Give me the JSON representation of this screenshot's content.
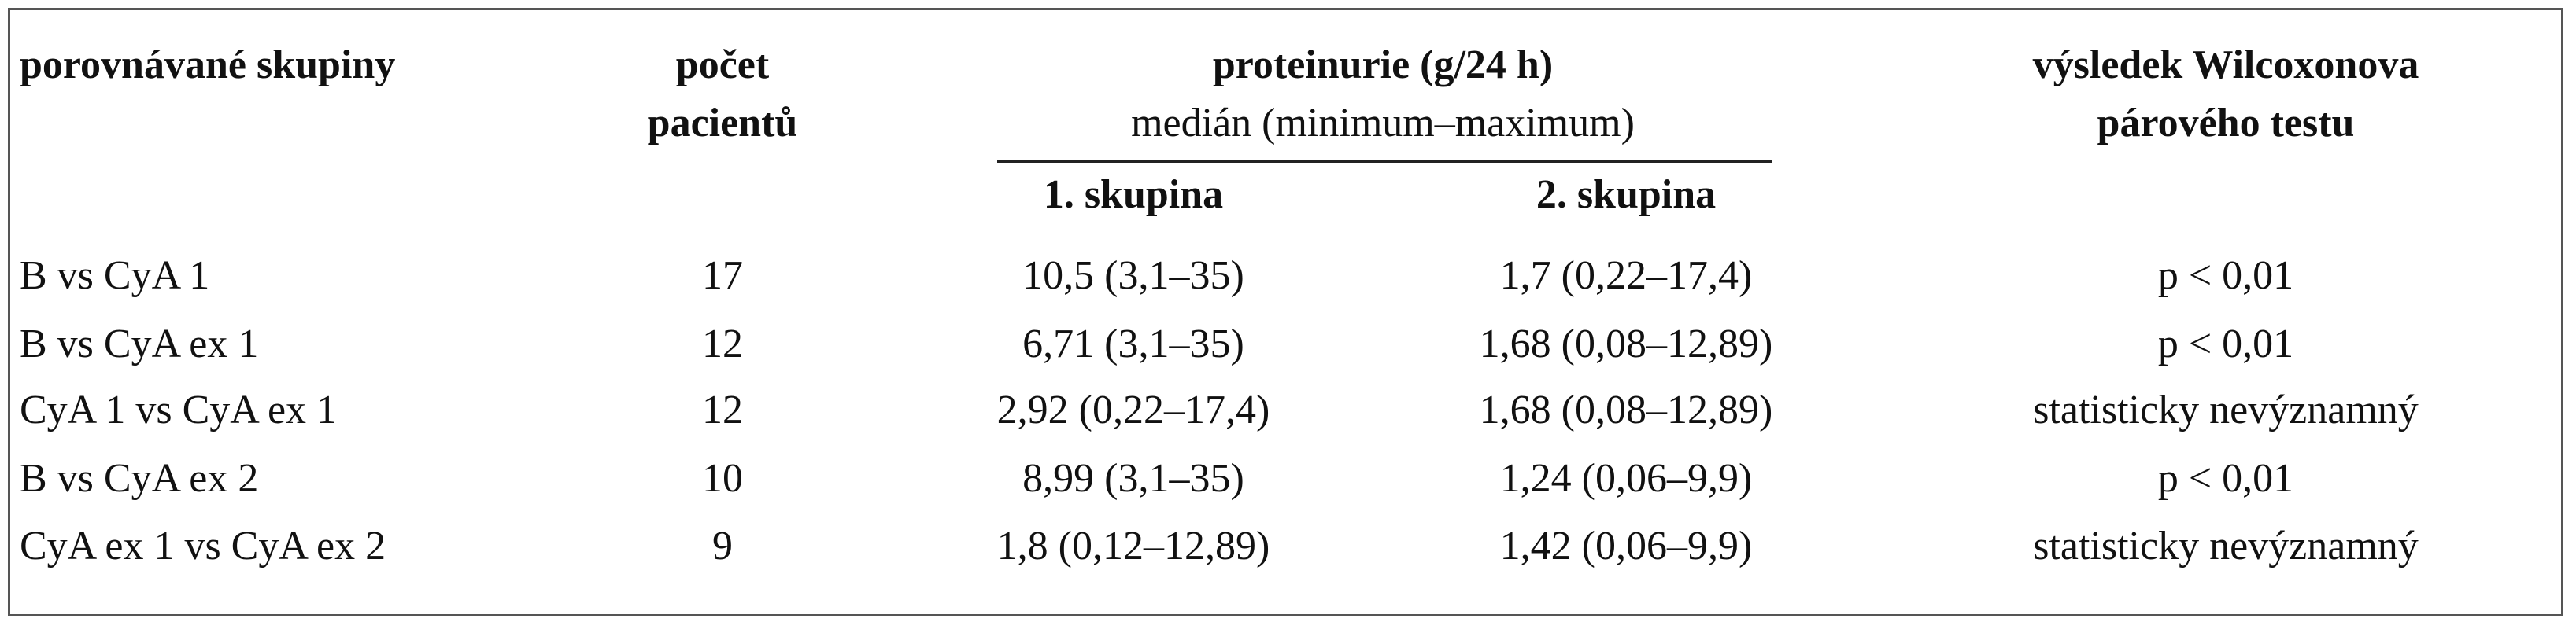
{
  "table": {
    "header": {
      "groups": "porovnávané skupiny",
      "count": [
        "počet",
        "pacientů"
      ],
      "proteinuria": [
        "proteinurie (g/24 h)",
        "medián (minimum–maximum)"
      ],
      "subheaders": [
        "1. skupina",
        "2. skupina"
      ],
      "test": [
        "výsledek Wilcoxonova",
        "párového testu"
      ]
    },
    "rows": [
      [
        "B vs CyA 1",
        "17",
        "10,5 (3,1–35)",
        "1,7 (0,22–17,4)",
        "p < 0,01"
      ],
      [
        "B vs CyA ex 1",
        "12",
        "6,71 (3,1–35)",
        "1,68 (0,08–12,89)",
        "p < 0,01"
      ],
      [
        "CyA 1 vs CyA ex 1",
        "12",
        "2,92 (0,22–17,4)",
        "1,68 (0,08–12,89)",
        "statisticky nevýznamný"
      ],
      [
        "B vs CyA ex 2",
        "10",
        "8,99 (3,1–35)",
        "1,24 (0,06–9,9)",
        "p < 0,01"
      ],
      [
        "CyA ex 1 vs CyA ex 2",
        "9",
        "1,8 (0,12–12,89)",
        "1,42 (0,06–9,9)",
        "statisticky nevýznamný"
      ]
    ]
  }
}
